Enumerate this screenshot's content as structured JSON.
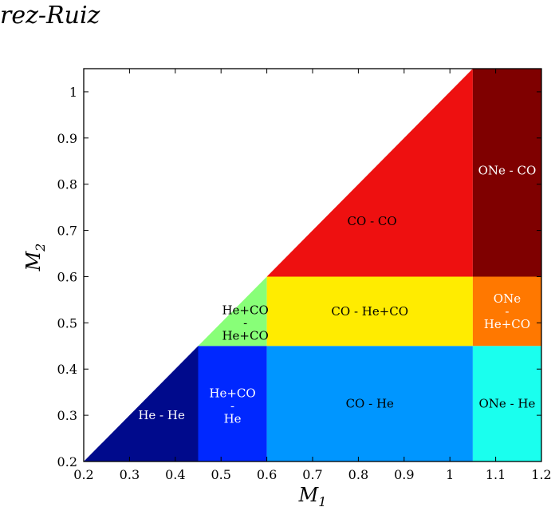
{
  "header": {
    "text": "rez-Ruiz"
  },
  "chart_data": {
    "type": "region-map",
    "xlabel": "M",
    "xlabel_sub": "1",
    "ylabel": "M",
    "ylabel_sub": "2",
    "xlim": [
      0.2,
      1.2
    ],
    "ylim": [
      0.2,
      1.05
    ],
    "xticks": [
      0.2,
      0.3,
      0.4,
      0.5,
      0.6,
      0.7,
      0.8,
      0.9,
      1,
      1.1,
      1.2
    ],
    "xtick_labels": [
      "0.2",
      "0.3",
      "0.4",
      "0.5",
      "0.6",
      "0.7",
      "0.8",
      "0.9",
      "1",
      "1.1",
      "1.2"
    ],
    "yticks": [
      0.2,
      0.3,
      0.4,
      0.5,
      0.6,
      0.7,
      0.8,
      0.9,
      1
    ],
    "ytick_labels": [
      "0.2",
      "0.3",
      "0.4",
      "0.5",
      "0.6",
      "0.7",
      "0.8",
      "0.9",
      "1"
    ],
    "grid": false,
    "regions": [
      {
        "name": "He-He",
        "label": [
          "He - He"
        ],
        "color": "#000a8c",
        "text_color": "#ffffff",
        "polygon": [
          [
            0.2,
            0.2
          ],
          [
            0.45,
            0.2
          ],
          [
            0.45,
            0.45
          ]
        ],
        "label_at": [
          0.37,
          0.3
        ]
      },
      {
        "name": "HeCO-He",
        "label": [
          "He+CO",
          "-",
          "He"
        ],
        "color": "#0028ff",
        "text_color": "#ffffff",
        "polygon": [
          [
            0.45,
            0.2
          ],
          [
            0.6,
            0.2
          ],
          [
            0.6,
            0.45
          ],
          [
            0.45,
            0.45
          ]
        ],
        "label_at": [
          0.525,
          0.32
        ]
      },
      {
        "name": "HeCO-HeCO",
        "label": [
          "He+CO",
          "-",
          "He+CO"
        ],
        "color": "#88ff78",
        "text_color": "#000000",
        "polygon": [
          [
            0.45,
            0.45
          ],
          [
            0.6,
            0.45
          ],
          [
            0.6,
            0.6
          ]
        ],
        "label_at": [
          0.553,
          0.5
        ]
      },
      {
        "name": "CO-He",
        "label": [
          "CO - He"
        ],
        "color": "#0096ff",
        "text_color": "#000000",
        "polygon": [
          [
            0.6,
            0.2
          ],
          [
            1.05,
            0.2
          ],
          [
            1.05,
            0.45
          ],
          [
            0.6,
            0.45
          ]
        ],
        "label_at": [
          0.825,
          0.325
        ]
      },
      {
        "name": "CO-HeCO",
        "label": [
          "CO - He+CO"
        ],
        "color": "#ffec00",
        "text_color": "#000000",
        "polygon": [
          [
            0.6,
            0.45
          ],
          [
            1.05,
            0.45
          ],
          [
            1.05,
            0.6
          ],
          [
            0.6,
            0.6
          ]
        ],
        "label_at": [
          0.825,
          0.525
        ]
      },
      {
        "name": "CO-CO",
        "label": [
          "CO - CO"
        ],
        "color": "#ee1010",
        "text_color": "#000000",
        "polygon": [
          [
            0.6,
            0.6
          ],
          [
            1.05,
            0.6
          ],
          [
            1.05,
            1.05
          ]
        ],
        "label_at": [
          0.83,
          0.72
        ]
      },
      {
        "name": "ONe-He",
        "label": [
          "ONe - He"
        ],
        "color": "#1affee",
        "text_color": "#000000",
        "polygon": [
          [
            1.05,
            0.2
          ],
          [
            1.2,
            0.2
          ],
          [
            1.2,
            0.45
          ],
          [
            1.05,
            0.45
          ]
        ],
        "label_at": [
          1.125,
          0.325
        ]
      },
      {
        "name": "ONe-HeCO",
        "label": [
          "ONe",
          "-",
          "He+CO"
        ],
        "color": "#ff7800",
        "text_color": "#ffffff",
        "polygon": [
          [
            1.05,
            0.45
          ],
          [
            1.2,
            0.45
          ],
          [
            1.2,
            0.6
          ],
          [
            1.05,
            0.6
          ]
        ],
        "label_at": [
          1.125,
          0.525
        ]
      },
      {
        "name": "ONe-CO",
        "label": [
          "ONe - CO"
        ],
        "color": "#7f0000",
        "text_color": "#ffffff",
        "polygon": [
          [
            1.05,
            0.6
          ],
          [
            1.2,
            0.6
          ],
          [
            1.2,
            1.05
          ],
          [
            1.05,
            1.05
          ]
        ],
        "label_at": [
          1.125,
          0.83
        ]
      }
    ]
  }
}
